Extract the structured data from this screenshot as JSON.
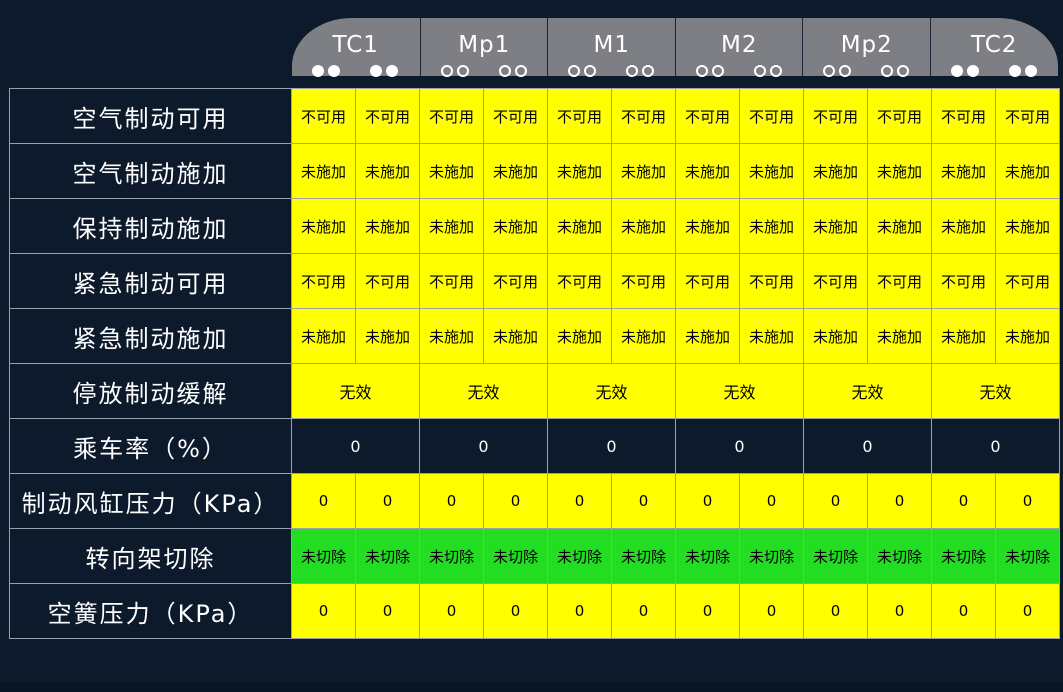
{
  "cars": [
    {
      "name": "TC1",
      "pattern": [
        "solid",
        "solid",
        "solid",
        "solid"
      ]
    },
    {
      "name": "Mp1",
      "pattern": [
        "hollow",
        "hollow",
        "hollow",
        "hollow"
      ]
    },
    {
      "name": "M1",
      "pattern": [
        "hollow",
        "hollow",
        "hollow",
        "hollow"
      ]
    },
    {
      "name": "M2",
      "pattern": [
        "hollow",
        "hollow",
        "hollow",
        "hollow"
      ]
    },
    {
      "name": "Mp2",
      "pattern": [
        "hollow",
        "hollow",
        "hollow",
        "hollow"
      ]
    },
    {
      "name": "TC2",
      "pattern": [
        "solid",
        "solid",
        "solid",
        "solid"
      ]
    }
  ],
  "rows": [
    {
      "label": "空气制动可用",
      "mode": "per_bogie",
      "color": "yellow",
      "values": [
        "不可用",
        "不可用",
        "不可用",
        "不可用",
        "不可用",
        "不可用",
        "不可用",
        "不可用",
        "不可用",
        "不可用",
        "不可用",
        "不可用"
      ]
    },
    {
      "label": "空气制动施加",
      "mode": "per_bogie",
      "color": "yellow",
      "values": [
        "未施加",
        "未施加",
        "未施加",
        "未施加",
        "未施加",
        "未施加",
        "未施加",
        "未施加",
        "未施加",
        "未施加",
        "未施加",
        "未施加"
      ]
    },
    {
      "label": "保持制动施加",
      "mode": "per_bogie",
      "color": "yellow",
      "values": [
        "未施加",
        "未施加",
        "未施加",
        "未施加",
        "未施加",
        "未施加",
        "未施加",
        "未施加",
        "未施加",
        "未施加",
        "未施加",
        "未施加"
      ]
    },
    {
      "label": "紧急制动可用",
      "mode": "per_bogie",
      "color": "yellow",
      "values": [
        "不可用",
        "不可用",
        "不可用",
        "不可用",
        "不可用",
        "不可用",
        "不可用",
        "不可用",
        "不可用",
        "不可用",
        "不可用",
        "不可用"
      ]
    },
    {
      "label": "紧急制动施加",
      "mode": "per_bogie",
      "color": "yellow",
      "values": [
        "未施加",
        "未施加",
        "未施加",
        "未施加",
        "未施加",
        "未施加",
        "未施加",
        "未施加",
        "未施加",
        "未施加",
        "未施加",
        "未施加"
      ]
    },
    {
      "label": "停放制动缓解",
      "mode": "per_car",
      "color": "yellow",
      "values": [
        "无效",
        "无效",
        "无效",
        "无效",
        "无效",
        "无效"
      ]
    },
    {
      "label": "乘车率（%）",
      "mode": "per_car",
      "color": "dark",
      "values": [
        "0",
        "0",
        "0",
        "0",
        "0",
        "0"
      ]
    },
    {
      "label": "制动风缸压力（KPa）",
      "mode": "per_bogie",
      "color": "yellow",
      "values": [
        "0",
        "0",
        "0",
        "0",
        "0",
        "0",
        "0",
        "0",
        "0",
        "0",
        "0",
        "0"
      ]
    },
    {
      "label": "转向架切除",
      "mode": "per_bogie",
      "color": "green",
      "values": [
        "未切除",
        "未切除",
        "未切除",
        "未切除",
        "未切除",
        "未切除",
        "未切除",
        "未切除",
        "未切除",
        "未切除",
        "未切除",
        "未切除"
      ]
    },
    {
      "label": "空簧压力（KPa）",
      "mode": "per_bogie",
      "color": "yellow",
      "values": [
        "0",
        "0",
        "0",
        "0",
        "0",
        "0",
        "0",
        "0",
        "0",
        "0",
        "0",
        "0"
      ]
    }
  ],
  "colors": {
    "yellow": "#ffff00",
    "green": "#22dd22",
    "dark": "#0c1a2c"
  }
}
